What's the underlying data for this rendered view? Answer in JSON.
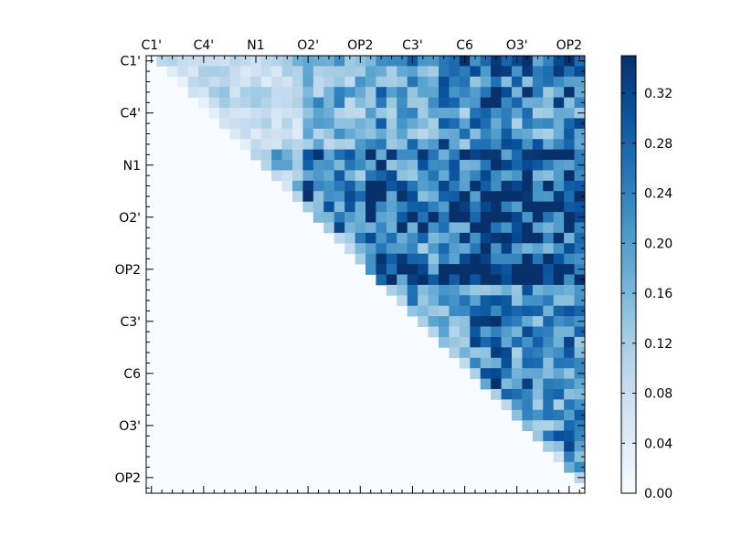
{
  "chart_data": {
    "type": "heatmap",
    "title": "",
    "xlabel": "",
    "ylabel": "",
    "grid": false,
    "colormap": "Blues",
    "colormap_stops": [
      "#f7fbff",
      "#deebf7",
      "#c6dbef",
      "#9ecae1",
      "#6baed6",
      "#4292c6",
      "#2171b5",
      "#08519c",
      "#08306b"
    ],
    "n": 42,
    "x_tick_labels": [
      {
        "index": 0,
        "label": "C1'"
      },
      {
        "index": 5,
        "label": "C4'"
      },
      {
        "index": 10,
        "label": "N1"
      },
      {
        "index": 15,
        "label": "O2'"
      },
      {
        "index": 20,
        "label": "OP2"
      },
      {
        "index": 25,
        "label": "C3'"
      },
      {
        "index": 30,
        "label": "C6"
      },
      {
        "index": 35,
        "label": "O3'"
      },
      {
        "index": 40,
        "label": "OP2"
      }
    ],
    "y_tick_labels": [
      {
        "index": 0,
        "label": "C1'"
      },
      {
        "index": 5,
        "label": "C4'"
      },
      {
        "index": 10,
        "label": "N1"
      },
      {
        "index": 15,
        "label": "O2'"
      },
      {
        "index": 20,
        "label": "OP2"
      },
      {
        "index": 25,
        "label": "C3'"
      },
      {
        "index": 30,
        "label": "C6"
      },
      {
        "index": 35,
        "label": "O3'"
      },
      {
        "index": 40,
        "label": "OP2"
      }
    ],
    "colorbar": {
      "vmin": 0.0,
      "vmax": 0.35,
      "ticks": [
        0.0,
        0.04,
        0.08,
        0.12,
        0.16,
        0.2,
        0.24,
        0.28,
        0.32
      ],
      "tick_labels": [
        "0.00",
        "0.04",
        "0.08",
        "0.12",
        "0.16",
        "0.20",
        "0.24",
        "0.28",
        "0.32"
      ]
    },
    "row_strength": [
      0.12,
      0.08,
      0.07,
      0.09,
      0.08,
      0.06,
      0.07,
      0.06,
      0.09,
      0.18,
      0.14,
      0.12,
      0.16,
      0.18,
      0.2,
      0.2,
      0.18,
      0.12,
      0.14,
      0.16,
      0.24,
      0.26,
      0.04,
      0.06,
      0.06,
      0.06,
      0.06,
      0.06,
      0.07,
      0.06,
      0.06,
      0.06,
      0.05,
      0.06,
      0.06,
      0.05,
      0.06,
      0.06,
      0.06,
      0.05,
      0.05,
      0.05
    ],
    "col_strength": [
      0.02,
      0.02,
      0.02,
      0.02,
      0.02,
      0.02,
      0.03,
      0.03,
      0.03,
      0.03,
      0.03,
      0.03,
      0.03,
      0.03,
      0.03,
      0.14,
      0.12,
      0.1,
      0.14,
      0.12,
      0.12,
      0.18,
      0.2,
      0.16,
      0.14,
      0.18,
      0.12,
      0.14,
      0.2,
      0.16,
      0.18,
      0.22,
      0.24,
      0.28,
      0.2,
      0.18,
      0.22,
      0.2,
      0.18,
      0.2,
      0.22,
      0.2
    ],
    "strong_cells": [
      {
        "row": 0,
        "col": 33,
        "value": 0.34
      },
      {
        "row": 9,
        "col": 19,
        "value": 0.3
      },
      {
        "row": 9,
        "col": 23,
        "value": 0.34
      },
      {
        "row": 9,
        "col": 32,
        "value": 0.34
      },
      {
        "row": 9,
        "col": 33,
        "value": 0.34
      },
      {
        "row": 9,
        "col": 36,
        "value": 0.34
      },
      {
        "row": 13,
        "col": 36,
        "value": 0.34
      },
      {
        "row": 14,
        "col": 32,
        "value": 0.32
      },
      {
        "row": 15,
        "col": 35,
        "value": 0.32
      },
      {
        "row": 17,
        "col": 33,
        "value": 0.34
      },
      {
        "row": 20,
        "col": 26,
        "value": 0.32
      },
      {
        "row": 20,
        "col": 33,
        "value": 0.32
      },
      {
        "row": 21,
        "col": 31,
        "value": 0.3
      },
      {
        "row": 37,
        "col": 40,
        "value": 0.32
      },
      {
        "row": 36,
        "col": 40,
        "value": 0.3
      },
      {
        "row": 28,
        "col": 40,
        "value": 0.3
      },
      {
        "row": 24,
        "col": 41,
        "value": 0.28
      }
    ]
  }
}
